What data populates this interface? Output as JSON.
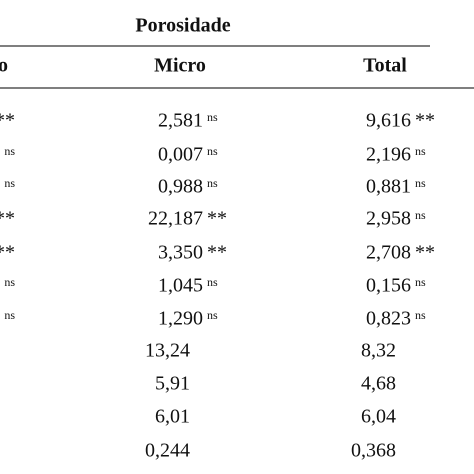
{
  "table": {
    "title": "Porosidade",
    "header": [
      "o",
      "Micro",
      "Total"
    ],
    "rows": [
      {
        "left": "**",
        "micro": "2,581",
        "micro_sig": "ns",
        "total": "9,616",
        "total_sig": "**"
      },
      {
        "left": "ns",
        "micro": "0,007",
        "micro_sig": "ns",
        "total": "2,196",
        "total_sig": "ns"
      },
      {
        "left": "ns",
        "micro": "0,988",
        "micro_sig": "ns",
        "total": "0,881",
        "total_sig": "ns"
      },
      {
        "left": "**",
        "micro": "22,187",
        "micro_sig": "**",
        "total": "2,958",
        "total_sig": "ns"
      },
      {
        "left": "**",
        "micro": "3,350",
        "micro_sig": "**",
        "total": "2,708",
        "total_sig": "**"
      },
      {
        "left": "ns",
        "micro": "1,045",
        "micro_sig": "ns",
        "total": "0,156",
        "total_sig": "ns"
      },
      {
        "left": "ns",
        "micro": "1,290",
        "micro_sig": "ns",
        "total": "0,823",
        "total_sig": "ns"
      },
      {
        "micro": "13,24",
        "total": "8,32"
      },
      {
        "micro": "5,91",
        "total": "4,68"
      },
      {
        "micro": "6,01",
        "total": "6,04"
      },
      {
        "micro": "0,244",
        "total": "0,368"
      }
    ]
  }
}
